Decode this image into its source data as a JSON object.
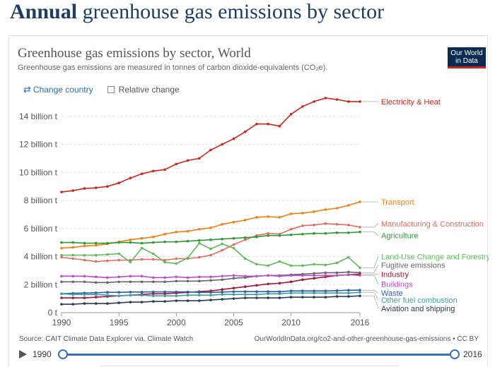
{
  "page": {
    "heading_bold": "Annual",
    "heading_rest": " greenhouse gas emissions by sector"
  },
  "logo": {
    "line1": "Our World",
    "line2": "in Data"
  },
  "controls": {
    "change_country": "Change country",
    "relative_change": "Relative change"
  },
  "footer": {
    "source": "Source: CAIT Climate Data Explorer via. Climate Watch",
    "url": "OurWorldInData.org/co2-and-other-greenhouse-gas-emissions • CC BY"
  },
  "timeline": {
    "start": "1990",
    "end": "2016"
  },
  "chart_data": {
    "type": "line",
    "title": "Greenhouse gas emissions by sector, World",
    "subtitle": "Greenhouse gas emissions are measured in tonnes of carbon dioxide-equivalents (CO₂e).",
    "x": [
      1990,
      1991,
      1992,
      1993,
      1994,
      1995,
      1996,
      1997,
      1998,
      1999,
      2000,
      2001,
      2002,
      2003,
      2004,
      2005,
      2006,
      2007,
      2008,
      2009,
      2010,
      2011,
      2012,
      2013,
      2014,
      2015,
      2016
    ],
    "xlim": [
      1990,
      2016
    ],
    "x_ticks": [
      1990,
      1995,
      2000,
      2005,
      2010,
      2016
    ],
    "x_tick_labels": [
      "1990",
      "1995",
      "2000",
      "2005",
      "2010",
      "2016"
    ],
    "ylim": [
      0,
      15.5
    ],
    "y_ticks": [
      0,
      2,
      4,
      6,
      8,
      10,
      12,
      14
    ],
    "y_tick_labels": [
      "0 t",
      "2 billion t",
      "4 billion t",
      "6 billion t",
      "8 billion t",
      "10 billion t",
      "12 billion t",
      "14 billion t"
    ],
    "unit": "billion t",
    "series": [
      {
        "name": "Electricity & Heat",
        "color": "#c8281e",
        "label_value": 15.05,
        "values": [
          8.6,
          8.7,
          8.85,
          8.9,
          9.0,
          9.25,
          9.6,
          9.9,
          10.1,
          10.2,
          10.6,
          10.85,
          11.0,
          11.6,
          12.0,
          12.4,
          12.9,
          13.45,
          13.45,
          13.3,
          14.15,
          14.7,
          15.05,
          15.3,
          15.2,
          15.05,
          15.05
        ]
      },
      {
        "name": "Transport",
        "color": "#f07f16",
        "label_value": 7.9,
        "values": [
          4.6,
          4.65,
          4.75,
          4.8,
          4.9,
          5.05,
          5.2,
          5.3,
          5.4,
          5.6,
          5.75,
          5.8,
          5.95,
          6.05,
          6.3,
          6.45,
          6.6,
          6.8,
          6.85,
          6.8,
          7.05,
          7.1,
          7.2,
          7.35,
          7.45,
          7.65,
          7.9
        ]
      },
      {
        "name": "Manufacturing & Construction",
        "color": "#df6d5d",
        "label_value": 6.35,
        "values": [
          3.95,
          3.85,
          3.75,
          3.65,
          3.7,
          3.75,
          3.75,
          3.8,
          3.8,
          3.75,
          3.85,
          3.85,
          3.95,
          4.1,
          4.45,
          4.85,
          5.2,
          5.5,
          5.65,
          5.6,
          5.95,
          6.2,
          6.25,
          6.35,
          6.3,
          6.25,
          6.1
        ]
      },
      {
        "name": "Agriculture",
        "color": "#2a9a35",
        "label_value": 5.5,
        "values": [
          5.0,
          5.0,
          4.95,
          4.95,
          4.95,
          5.0,
          5.0,
          4.95,
          5.0,
          5.05,
          5.05,
          5.1,
          5.15,
          5.2,
          5.25,
          5.3,
          5.35,
          5.4,
          5.5,
          5.5,
          5.55,
          5.6,
          5.65,
          5.65,
          5.7,
          5.7,
          5.75
        ]
      },
      {
        "name": "Land-Use Change and Forestry",
        "color": "#5fb85c",
        "label_value": 4.0,
        "values": [
          4.1,
          4.1,
          4.1,
          4.1,
          4.15,
          4.2,
          3.6,
          4.6,
          4.2,
          3.6,
          3.5,
          3.9,
          4.95,
          4.55,
          4.9,
          4.6,
          3.85,
          3.45,
          3.35,
          3.65,
          3.35,
          3.35,
          3.45,
          3.4,
          3.55,
          3.95,
          3.2
        ]
      },
      {
        "name": "Fugitive emissions",
        "color": "#666666",
        "label_value": 3.4,
        "values": [
          2.2,
          2.2,
          2.2,
          2.15,
          2.15,
          2.2,
          2.2,
          2.2,
          2.2,
          2.2,
          2.25,
          2.25,
          2.25,
          2.3,
          2.35,
          2.45,
          2.5,
          2.6,
          2.65,
          2.65,
          2.7,
          2.75,
          2.8,
          2.85,
          2.85,
          2.9,
          2.85
        ]
      },
      {
        "name": "Industry",
        "color": "#a31837",
        "label_value": 2.75,
        "values": [
          1.05,
          1.05,
          1.05,
          1.1,
          1.15,
          1.2,
          1.25,
          1.3,
          1.35,
          1.35,
          1.4,
          1.45,
          1.5,
          1.55,
          1.65,
          1.75,
          1.85,
          1.95,
          2.05,
          2.1,
          2.2,
          2.35,
          2.45,
          2.55,
          2.65,
          2.7,
          2.75
        ]
      },
      {
        "name": "Buildings",
        "color": "#bb4ec6",
        "label_value": 2.05,
        "values": [
          2.6,
          2.6,
          2.6,
          2.55,
          2.5,
          2.55,
          2.6,
          2.6,
          2.5,
          2.5,
          2.55,
          2.5,
          2.55,
          2.55,
          2.6,
          2.65,
          2.6,
          2.6,
          2.65,
          2.6,
          2.65,
          2.65,
          2.65,
          2.65,
          2.65,
          2.7,
          2.65
        ]
      },
      {
        "name": "Waste",
        "color": "#2f5ea8",
        "label_value": 1.4,
        "values": [
          1.35,
          1.38,
          1.4,
          1.42,
          1.45,
          1.45,
          1.47,
          1.47,
          1.48,
          1.48,
          1.48,
          1.48,
          1.45,
          1.45,
          1.47,
          1.5,
          1.5,
          1.5,
          1.5,
          1.5,
          1.55,
          1.55,
          1.55,
          1.55,
          1.57,
          1.6,
          1.6
        ]
      },
      {
        "name": "Other fuel combustion",
        "color": "#3c9fa6",
        "label_value": 0.9,
        "values": [
          1.35,
          1.3,
          1.3,
          1.3,
          1.25,
          1.2,
          1.25,
          1.25,
          1.2,
          1.2,
          1.2,
          1.25,
          1.25,
          1.25,
          1.3,
          1.3,
          1.3,
          1.3,
          1.35,
          1.35,
          1.4,
          1.4,
          1.4,
          1.4,
          1.4,
          1.4,
          1.45
        ]
      },
      {
        "name": "Aviation and shipping",
        "color": "#2b3d55",
        "label_value": 0.3,
        "values": [
          0.6,
          0.6,
          0.65,
          0.65,
          0.65,
          0.7,
          0.75,
          0.75,
          0.8,
          0.8,
          0.85,
          0.85,
          0.85,
          0.9,
          0.95,
          1.0,
          1.05,
          1.05,
          1.05,
          1.05,
          1.1,
          1.1,
          1.1,
          1.1,
          1.15,
          1.15,
          1.2
        ]
      }
    ]
  }
}
